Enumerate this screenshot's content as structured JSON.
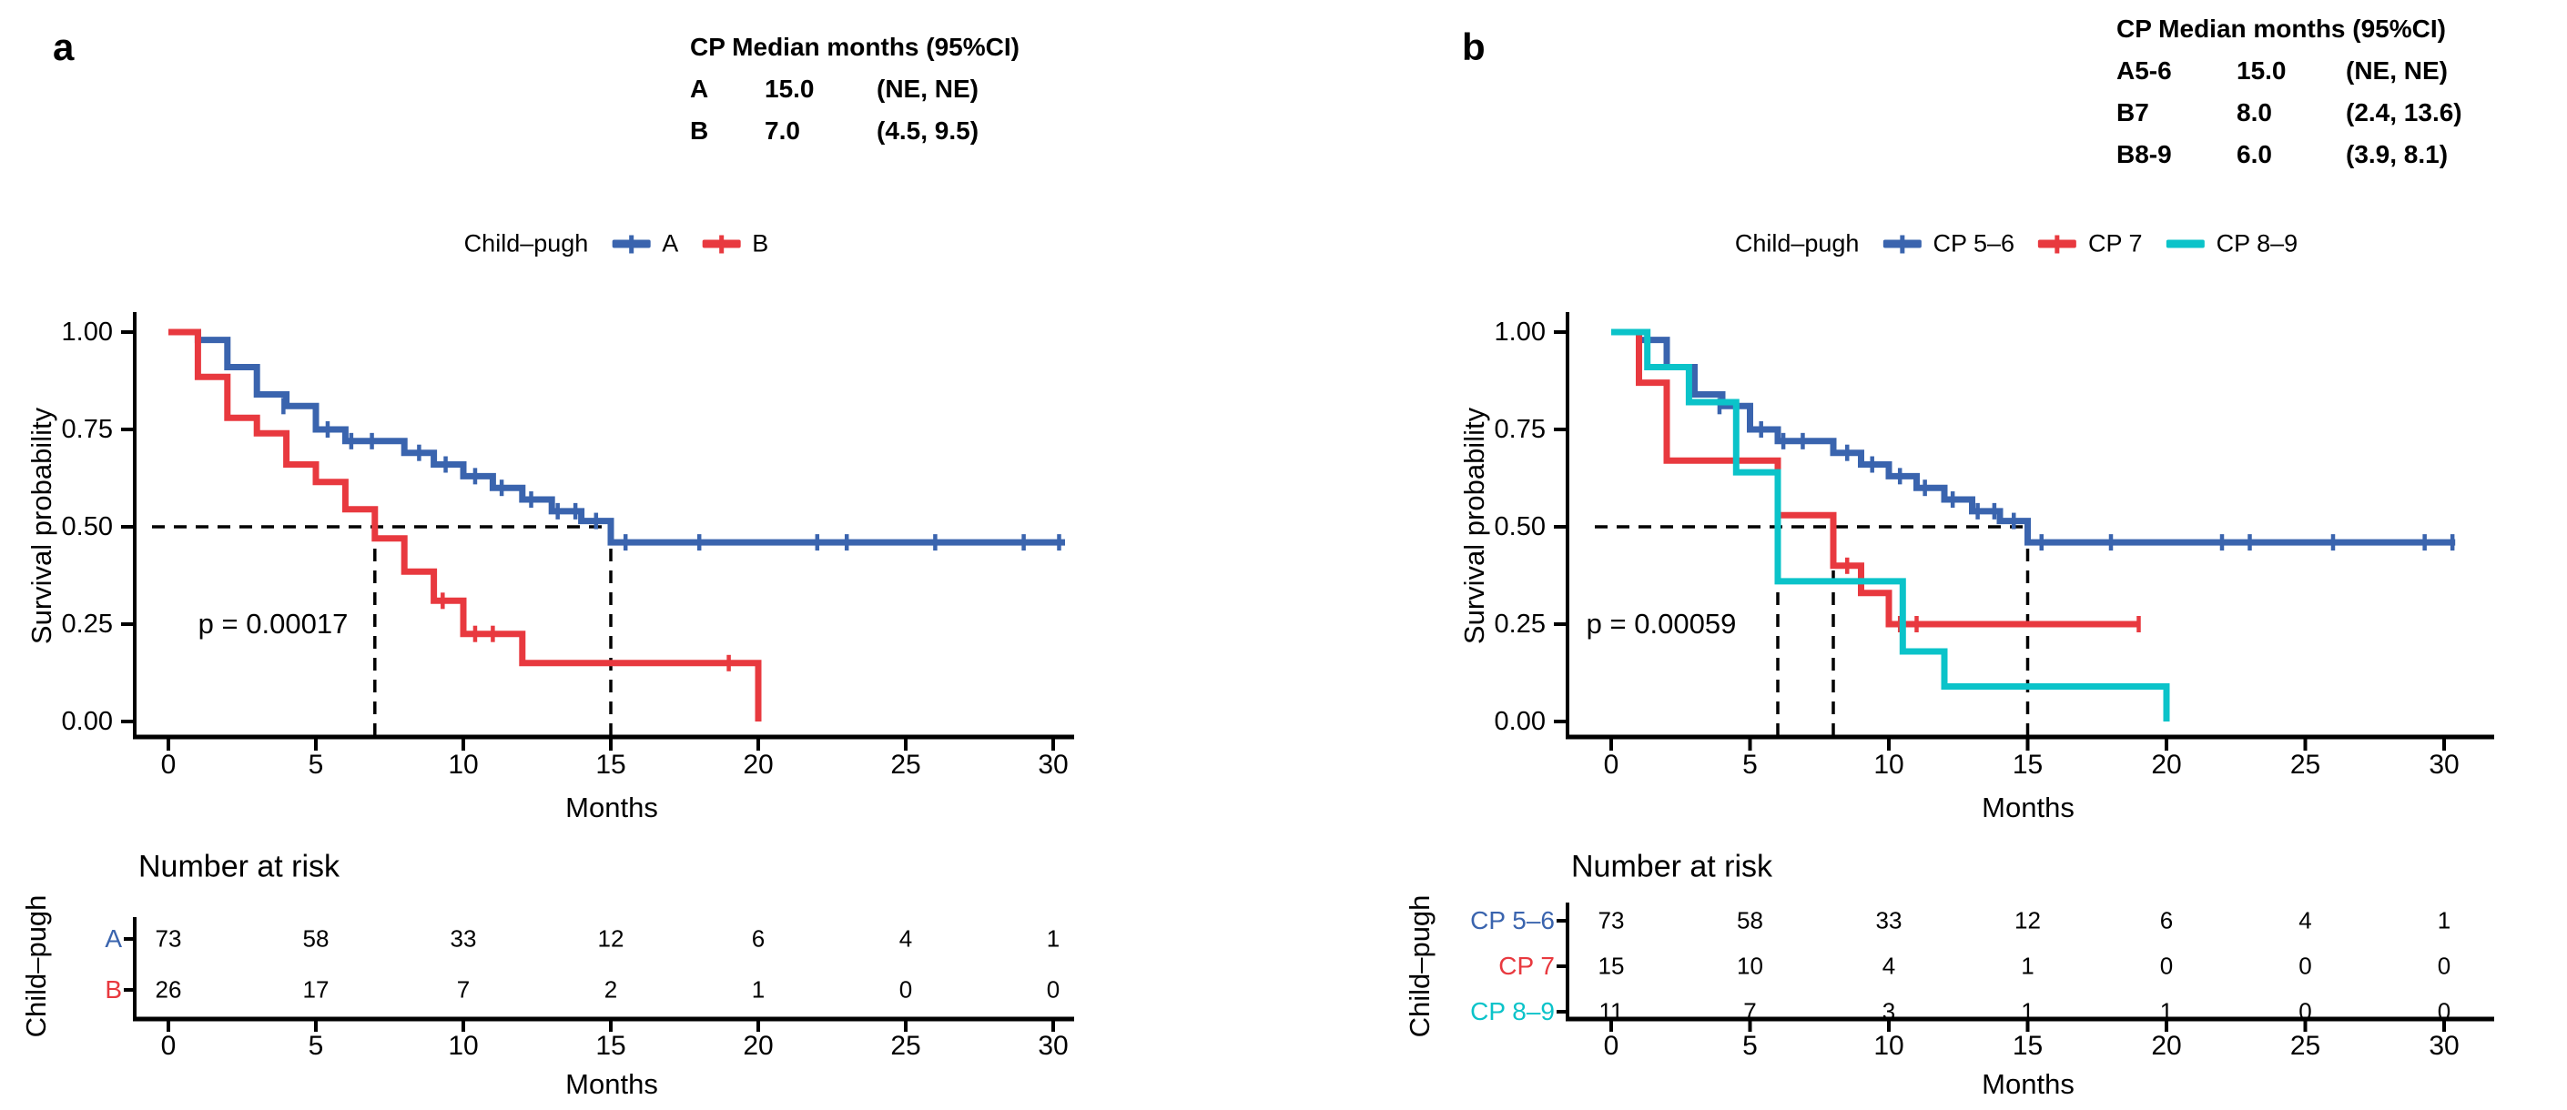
{
  "colors": {
    "blue": "#3A64AE",
    "red": "#E8393F",
    "cyan": "#0BC3C9",
    "black": "#000000",
    "background": "#FFFFFF"
  },
  "chart_data": [
    {
      "type": "line",
      "subtype": "kaplan-meier",
      "panel_label": "a",
      "median_table": {
        "header": "CP Median months (95%CI)",
        "rows": [
          [
            "A",
            "15.0",
            "(NE, NE)"
          ],
          [
            "B",
            "7.0",
            "(4.5, 9.5)"
          ]
        ]
      },
      "legend": {
        "title": "Child–pugh",
        "entries": [
          {
            "label": "A",
            "color": "blue",
            "censor_tick": true
          },
          {
            "label": "B",
            "color": "red",
            "censor_tick": true
          }
        ]
      },
      "pvalue": "p = 0.00017",
      "ylabel": "Survival probability",
      "xlabel": "Months",
      "xlim": [
        0,
        30.6
      ],
      "ylim": [
        0,
        1
      ],
      "grid": false,
      "legend_position": "top",
      "yticks": [
        {
          "value": 1.0,
          "label": "1.00"
        },
        {
          "value": 0.75,
          "label": "0.75"
        },
        {
          "value": 0.5,
          "label": "0.50"
        },
        {
          "value": 0.25,
          "label": "0.25"
        },
        {
          "value": 0.0,
          "label": "0.00"
        }
      ],
      "xticks": [
        0,
        5,
        10,
        15,
        20,
        25,
        30
      ],
      "median_reference": {
        "surv": 0.5,
        "months": [
          7,
          15
        ]
      },
      "series": [
        {
          "name": "A",
          "color": "blue",
          "steps": [
            [
              0,
              1.0
            ],
            [
              1,
              0.98
            ],
            [
              2,
              0.91
            ],
            [
              3,
              0.84
            ],
            [
              4,
              0.81
            ],
            [
              5,
              0.75
            ],
            [
              6,
              0.72
            ],
            [
              8,
              0.69
            ],
            [
              9,
              0.66
            ],
            [
              10,
              0.63
            ],
            [
              11,
              0.6
            ],
            [
              12,
              0.57
            ],
            [
              13,
              0.54
            ],
            [
              14,
              0.515
            ],
            [
              15,
              0.46
            ],
            [
              30.4,
              0.46
            ]
          ],
          "censors": [
            [
              3.9,
              0.81
            ],
            [
              5.4,
              0.75
            ],
            [
              6.2,
              0.72
            ],
            [
              6.9,
              0.72
            ],
            [
              8.5,
              0.69
            ],
            [
              9.4,
              0.66
            ],
            [
              10.4,
              0.63
            ],
            [
              11.3,
              0.6
            ],
            [
              12.3,
              0.57
            ],
            [
              13.2,
              0.54
            ],
            [
              13.8,
              0.54
            ],
            [
              14.5,
              0.515
            ],
            [
              15.5,
              0.46
            ],
            [
              18,
              0.46
            ],
            [
              22,
              0.46
            ],
            [
              23,
              0.46
            ],
            [
              26,
              0.46
            ],
            [
              29,
              0.46
            ],
            [
              30.2,
              0.46
            ]
          ]
        },
        {
          "name": "B",
          "color": "red",
          "steps": [
            [
              0,
              1.0
            ],
            [
              1,
              0.885
            ],
            [
              2,
              0.78
            ],
            [
              3,
              0.74
            ],
            [
              4,
              0.66
            ],
            [
              5,
              0.615
            ],
            [
              6,
              0.545
            ],
            [
              7,
              0.47
            ],
            [
              8,
              0.385
            ],
            [
              9,
              0.31
            ],
            [
              10,
              0.225
            ],
            [
              12,
              0.15
            ],
            [
              20,
              0
            ]
          ],
          "censors": [
            [
              9.3,
              0.31
            ],
            [
              10.4,
              0.225
            ],
            [
              11,
              0.225
            ],
            [
              19,
              0.15
            ]
          ]
        }
      ],
      "risk_table": {
        "title": "Number at risk",
        "axis_label": "Child–pugh",
        "xlabel": "Months",
        "xticks": [
          0,
          5,
          10,
          15,
          20,
          25,
          30
        ],
        "rows": [
          {
            "label": "A",
            "color": "blue",
            "values": [
              "73",
              "58",
              "33",
              "12",
              "6",
              "4",
              "1"
            ]
          },
          {
            "label": "B",
            "color": "red",
            "values": [
              "26",
              "17",
              "7",
              "2",
              "1",
              "0",
              "0"
            ]
          }
        ]
      }
    },
    {
      "type": "line",
      "subtype": "kaplan-meier",
      "panel_label": "b",
      "median_table": {
        "header": "CP Median months (95%CI)",
        "rows": [
          [
            "A5-6",
            "15.0",
            "(NE, NE)"
          ],
          [
            "B7",
            "8.0",
            "(2.4, 13.6)"
          ],
          [
            "B8-9",
            "6.0",
            "(3.9, 8.1)"
          ]
        ]
      },
      "legend": {
        "title": "Child–pugh",
        "entries": [
          {
            "label": "CP 5–6",
            "color": "blue",
            "censor_tick": true
          },
          {
            "label": "CP 7",
            "color": "red",
            "censor_tick": true
          },
          {
            "label": "CP 8–9",
            "color": "cyan",
            "censor_tick": false
          }
        ]
      },
      "pvalue": "p = 0.00059",
      "ylabel": "Survival probability",
      "xlabel": "Months",
      "xlim": [
        0,
        30.6
      ],
      "ylim": [
        0,
        1
      ],
      "grid": false,
      "legend_position": "top",
      "yticks": [
        {
          "value": 1.0,
          "label": "1.00"
        },
        {
          "value": 0.75,
          "label": "0.75"
        },
        {
          "value": 0.5,
          "label": "0.50"
        },
        {
          "value": 0.25,
          "label": "0.25"
        },
        {
          "value": 0.0,
          "label": "0.00"
        }
      ],
      "xticks": [
        0,
        5,
        10,
        15,
        20,
        25,
        30
      ],
      "median_reference": {
        "surv": 0.5,
        "months": [
          6,
          8,
          15
        ]
      },
      "series": [
        {
          "name": "CP 5–6",
          "color": "blue",
          "steps": [
            [
              0,
              1.0
            ],
            [
              1,
              0.98
            ],
            [
              2,
              0.91
            ],
            [
              3,
              0.84
            ],
            [
              4,
              0.81
            ],
            [
              5,
              0.75
            ],
            [
              6,
              0.72
            ],
            [
              8,
              0.69
            ],
            [
              9,
              0.66
            ],
            [
              10,
              0.63
            ],
            [
              11,
              0.6
            ],
            [
              12,
              0.57
            ],
            [
              13,
              0.54
            ],
            [
              14,
              0.515
            ],
            [
              15,
              0.46
            ],
            [
              30.4,
              0.46
            ]
          ],
          "censors": [
            [
              3.9,
              0.81
            ],
            [
              5.4,
              0.75
            ],
            [
              6.2,
              0.72
            ],
            [
              6.9,
              0.72
            ],
            [
              8.5,
              0.69
            ],
            [
              9.4,
              0.66
            ],
            [
              10.4,
              0.63
            ],
            [
              11.3,
              0.6
            ],
            [
              12.3,
              0.57
            ],
            [
              13.2,
              0.54
            ],
            [
              13.8,
              0.54
            ],
            [
              14.5,
              0.515
            ],
            [
              15.5,
              0.46
            ],
            [
              18,
              0.46
            ],
            [
              22,
              0.46
            ],
            [
              23,
              0.46
            ],
            [
              26,
              0.46
            ],
            [
              29.3,
              0.46
            ],
            [
              30.3,
              0.46
            ]
          ]
        },
        {
          "name": "CP 7",
          "color": "red",
          "steps": [
            [
              0,
              1.0
            ],
            [
              1,
              0.87
            ],
            [
              2,
              0.67
            ],
            [
              6,
              0.53
            ],
            [
              8,
              0.4
            ],
            [
              9,
              0.33
            ],
            [
              10,
              0.25
            ],
            [
              19,
              0.25
            ]
          ],
          "censors": [
            [
              8.5,
              0.4
            ],
            [
              10.4,
              0.25
            ],
            [
              11,
              0.25
            ],
            [
              19,
              0.25
            ]
          ]
        },
        {
          "name": "CP 8–9",
          "color": "cyan",
          "steps": [
            [
              0,
              1.0
            ],
            [
              1.3,
              0.91
            ],
            [
              2.8,
              0.82
            ],
            [
              4.5,
              0.64
            ],
            [
              6,
              0.36
            ],
            [
              10.5,
              0.18
            ],
            [
              12,
              0.09
            ],
            [
              20,
              0
            ]
          ],
          "censors": []
        }
      ],
      "risk_table": {
        "title": "Number at risk",
        "axis_label": "Child–pugh",
        "xlabel": "Months",
        "xticks": [
          0,
          5,
          10,
          15,
          20,
          25,
          30
        ],
        "rows": [
          {
            "label": "CP 5–6",
            "color": "blue",
            "values": [
              "73",
              "58",
              "33",
              "12",
              "6",
              "4",
              "1"
            ]
          },
          {
            "label": "CP 7",
            "color": "red",
            "values": [
              "15",
              "10",
              "4",
              "1",
              "0",
              "0",
              "0"
            ]
          },
          {
            "label": "CP 8–9",
            "color": "cyan",
            "values": [
              "11",
              "7",
              "3",
              "1",
              "1",
              "0",
              "0"
            ]
          }
        ]
      }
    }
  ]
}
